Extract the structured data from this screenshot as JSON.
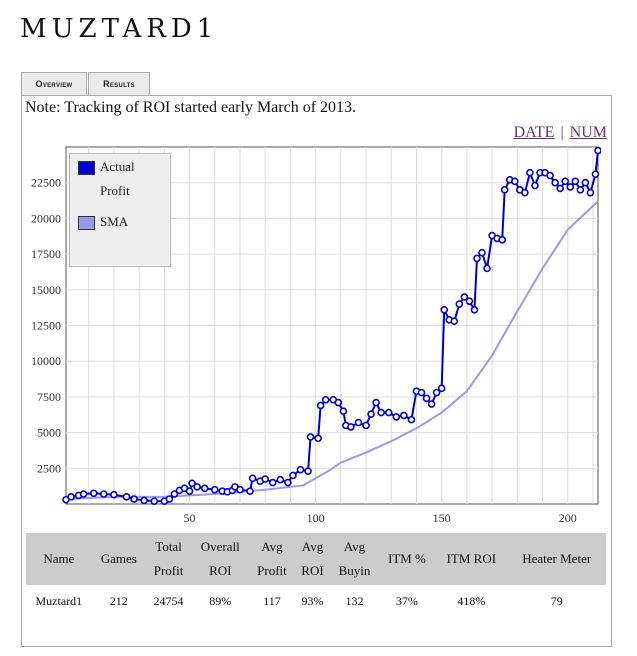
{
  "page": {
    "title": "MUZTARD1"
  },
  "tabs": [
    {
      "label": "Overview",
      "active": true
    },
    {
      "label": "Results",
      "active": false
    }
  ],
  "note": "Note: Tracking of ROI started early March of 2013.",
  "sort_links": {
    "date": "DATE",
    "separator": "|",
    "num": "NUM"
  },
  "colors": {
    "actual": "#0000cc",
    "sma": "#9999ee",
    "grid": "#dddddd"
  },
  "chart_data": {
    "type": "line",
    "xlim": [
      1,
      212
    ],
    "ylim": [
      0,
      25000
    ],
    "x_ticks": [
      50,
      100,
      150,
      200
    ],
    "y_ticks": [
      2500,
      5000,
      7500,
      10000,
      12500,
      15000,
      17500,
      20000,
      22500
    ],
    "grid": true,
    "legend_placement": "top-left",
    "series": [
      {
        "name": "Actual Profit",
        "marker": "circle",
        "points": [
          [
            1,
            300
          ],
          [
            3,
            500
          ],
          [
            6,
            600
          ],
          [
            8,
            700
          ],
          [
            12,
            750
          ],
          [
            16,
            700
          ],
          [
            20,
            650
          ],
          [
            25,
            500
          ],
          [
            28,
            350
          ],
          [
            32,
            250
          ],
          [
            36,
            200
          ],
          [
            40,
            200
          ],
          [
            42,
            350
          ],
          [
            44,
            700
          ],
          [
            46,
            950
          ],
          [
            48,
            1100
          ],
          [
            50,
            900
          ],
          [
            51,
            1450
          ],
          [
            53,
            1200
          ],
          [
            56,
            1100
          ],
          [
            60,
            1000
          ],
          [
            63,
            900
          ],
          [
            65,
            850
          ],
          [
            67,
            950
          ],
          [
            68,
            1200
          ],
          [
            70,
            1000
          ],
          [
            74,
            900
          ],
          [
            75,
            1800
          ],
          [
            78,
            1600
          ],
          [
            80,
            1750
          ],
          [
            83,
            1500
          ],
          [
            86,
            1700
          ],
          [
            89,
            1500
          ],
          [
            91,
            2000
          ],
          [
            94,
            2400
          ],
          [
            97,
            2300
          ],
          [
            98,
            4700
          ],
          [
            101,
            4600
          ],
          [
            102,
            6900
          ],
          [
            104,
            7300
          ],
          [
            107,
            7300
          ],
          [
            109,
            7100
          ],
          [
            111,
            6500
          ],
          [
            112,
            5500
          ],
          [
            114,
            5400
          ],
          [
            117,
            5700
          ],
          [
            120,
            5500
          ],
          [
            122,
            6300
          ],
          [
            124,
            7100
          ],
          [
            126,
            6400
          ],
          [
            129,
            6400
          ],
          [
            132,
            6100
          ],
          [
            135,
            6200
          ],
          [
            138,
            5900
          ],
          [
            140,
            7900
          ],
          [
            142,
            7800
          ],
          [
            144,
            7400
          ],
          [
            146,
            7000
          ],
          [
            148,
            7800
          ],
          [
            150,
            8100
          ],
          [
            151,
            13600
          ],
          [
            153,
            12900
          ],
          [
            155,
            12800
          ],
          [
            157,
            14000
          ],
          [
            159,
            14500
          ],
          [
            161,
            14200
          ],
          [
            163,
            13600
          ],
          [
            164,
            17200
          ],
          [
            166,
            17600
          ],
          [
            168,
            16500
          ],
          [
            170,
            18800
          ],
          [
            172,
            18600
          ],
          [
            174,
            18500
          ],
          [
            175,
            22000
          ],
          [
            177,
            22700
          ],
          [
            179,
            22600
          ],
          [
            181,
            22000
          ],
          [
            183,
            21800
          ],
          [
            185,
            23200
          ],
          [
            187,
            22300
          ],
          [
            189,
            23200
          ],
          [
            191,
            23200
          ],
          [
            193,
            23000
          ],
          [
            195,
            22500
          ],
          [
            197,
            22100
          ],
          [
            199,
            22600
          ],
          [
            201,
            22200
          ],
          [
            203,
            22600
          ],
          [
            205,
            22000
          ],
          [
            207,
            22500
          ],
          [
            209,
            21800
          ],
          [
            211,
            23100
          ],
          [
            212,
            24754
          ]
        ]
      },
      {
        "name": "SMA",
        "points": [
          [
            1,
            350
          ],
          [
            20,
            500
          ],
          [
            40,
            500
          ],
          [
            60,
            700
          ],
          [
            80,
            1000
          ],
          [
            95,
            1300
          ],
          [
            100,
            1800
          ],
          [
            105,
            2300
          ],
          [
            110,
            2900
          ],
          [
            120,
            3600
          ],
          [
            130,
            4400
          ],
          [
            140,
            5300
          ],
          [
            150,
            6400
          ],
          [
            160,
            7900
          ],
          [
            170,
            10400
          ],
          [
            180,
            13500
          ],
          [
            190,
            16500
          ],
          [
            200,
            19200
          ],
          [
            212,
            21200
          ]
        ]
      }
    ]
  },
  "legend": {
    "actual_line1": "Actual",
    "actual_line2": "Profit",
    "sma": "SMA"
  },
  "table": {
    "headers": [
      [
        "Name"
      ],
      [
        "Games"
      ],
      [
        "Total",
        "Profit"
      ],
      [
        "Overall",
        "ROI"
      ],
      [
        "Avg",
        "Profit"
      ],
      [
        "Avg",
        "ROI"
      ],
      [
        "Avg",
        "Buyin"
      ],
      [
        "ITM %"
      ],
      [
        "ITM ROI"
      ],
      [
        "Heater Meter"
      ]
    ],
    "row": [
      "Muztard1",
      "212",
      "24754",
      "89%",
      "117",
      "93%",
      "132",
      "37%",
      "418%",
      "79"
    ]
  }
}
